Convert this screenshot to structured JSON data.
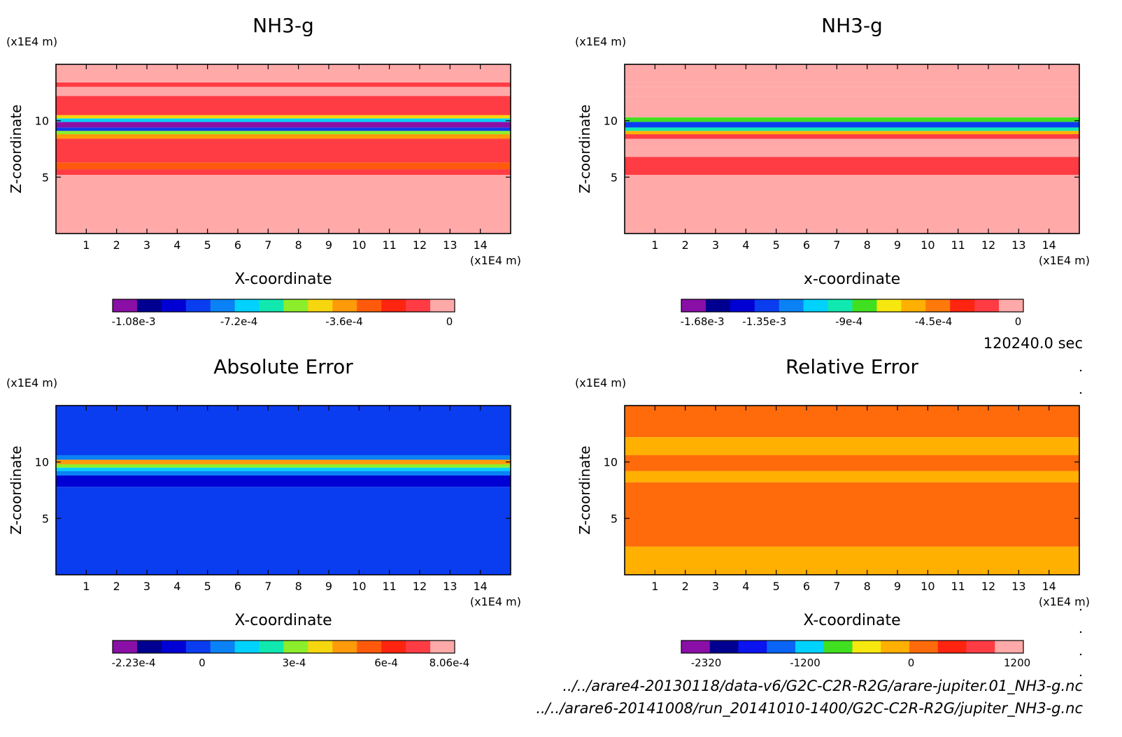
{
  "time_label": "120240.0 sec",
  "files": [
    "../../arare4-20130118/data-v6/G2C-C2R-R2G/arare-jupiter.01_NH3-g.nc",
    "../../arare6-20141008/run_20141010-1400/G2C-C2R-R2G/jupiter_NH3-g.nc"
  ],
  "chart_data": [
    {
      "type": "heatmap",
      "title": "NH3-g",
      "xlabel": "X-coordinate",
      "ylabel": "Z-coordinate",
      "x_unit": "(x1E4 m)",
      "y_unit": "(x1E4 m)",
      "xlim": [
        0,
        15
      ],
      "ylim": [
        0,
        15
      ],
      "xticks": [
        1,
        2,
        3,
        4,
        5,
        6,
        7,
        8,
        9,
        10,
        11,
        12,
        13,
        14
      ],
      "yticks": [
        5,
        10
      ],
      "colorbar": {
        "colors": [
          "#8a0fa6",
          "#000090",
          "#0000d4",
          "#0a3cf0",
          "#0a82f5",
          "#00d2ff",
          "#10e8b0",
          "#8cee2a",
          "#f6d60e",
          "#ff9a0a",
          "#ff5a0c",
          "#ff2410",
          "#ff3c44",
          "#ffa9a9"
        ],
        "labels": [
          "-1.08e-3",
          "-7.2e-4",
          "-3.6e-4",
          "0"
        ]
      },
      "bands": [
        {
          "z0": 0.0,
          "z1": 5.2,
          "value": 0
        },
        {
          "z0": 5.2,
          "z1": 5.7,
          "value": -0.00014
        },
        {
          "z0": 5.7,
          "z1": 6.3,
          "value": -0.00025
        },
        {
          "z0": 6.3,
          "z1": 8.4,
          "value": -0.00012
        },
        {
          "z0": 8.4,
          "z1": 8.8,
          "value": -0.00032
        },
        {
          "z0": 8.8,
          "z1": 9.1,
          "value": -0.00055
        },
        {
          "z0": 9.1,
          "z1": 9.4,
          "value": -0.00085
        },
        {
          "z0": 9.4,
          "z1": 9.9,
          "value": -0.00108
        },
        {
          "z0": 9.9,
          "z1": 10.2,
          "value": -0.00072
        },
        {
          "z0": 10.2,
          "z1": 10.5,
          "value": -0.0004
        },
        {
          "z0": 10.5,
          "z1": 12.2,
          "value": -0.0001
        },
        {
          "z0": 12.2,
          "z1": 13.0,
          "value": -4e-05
        },
        {
          "z0": 13.0,
          "z1": 13.4,
          "value": -0.0001
        },
        {
          "z0": 13.4,
          "z1": 15.0,
          "value": 0
        }
      ]
    },
    {
      "type": "heatmap",
      "title": "NH3-g",
      "xlabel": "x-coordinate",
      "ylabel": "Z-coordinate",
      "x_unit": "(x1E4 m)",
      "y_unit": "(x1E4 m)",
      "xlim": [
        0,
        15
      ],
      "ylim": [
        0,
        15
      ],
      "xticks": [
        1,
        2,
        3,
        4,
        5,
        6,
        7,
        8,
        9,
        10,
        11,
        12,
        13,
        14
      ],
      "yticks": [
        5,
        10
      ],
      "colorbar": {
        "colors": [
          "#8a0fa6",
          "#000090",
          "#0000d4",
          "#0a3cf0",
          "#0a82f5",
          "#00d2ff",
          "#10e8b0",
          "#40e020",
          "#f6e80e",
          "#ffb000",
          "#ff7a0a",
          "#ff2410",
          "#ff3c44",
          "#ffa9a9"
        ],
        "labels": [
          "-1.68e-3",
          "-1.35e-3",
          "-9e-4",
          "-4.5e-4",
          "0"
        ]
      },
      "bands": [
        {
          "z0": 0.0,
          "z1": 5.2,
          "value": 0
        },
        {
          "z0": 5.2,
          "z1": 6.8,
          "value": -0.00015
        },
        {
          "z0": 6.8,
          "z1": 7.6,
          "value": -5e-05
        },
        {
          "z0": 7.6,
          "z1": 8.4,
          "value": -2e-05
        },
        {
          "z0": 8.4,
          "z1": 8.8,
          "value": -0.0002
        },
        {
          "z0": 8.8,
          "z1": 9.1,
          "value": -0.0006
        },
        {
          "z0": 9.1,
          "z1": 9.4,
          "value": -0.001
        },
        {
          "z0": 9.4,
          "z1": 9.9,
          "value": -0.00135
        },
        {
          "z0": 9.9,
          "z1": 10.3,
          "value": -0.0008
        },
        {
          "z0": 10.3,
          "z1": 12.2,
          "value": -0.0001
        },
        {
          "z0": 12.2,
          "z1": 13.0,
          "value": -3e-05
        },
        {
          "z0": 13.0,
          "z1": 13.4,
          "value": -0.0001
        },
        {
          "z0": 13.4,
          "z1": 15.0,
          "value": 0
        }
      ]
    },
    {
      "type": "heatmap",
      "title": "Absolute Error",
      "xlabel": "X-coordinate",
      "ylabel": "Z-coordinate",
      "x_unit": "(x1E4 m)",
      "y_unit": "(x1E4 m)",
      "xlim": [
        0,
        15
      ],
      "ylim": [
        0,
        15
      ],
      "xticks": [
        1,
        2,
        3,
        4,
        5,
        6,
        7,
        8,
        9,
        10,
        11,
        12,
        13,
        14
      ],
      "yticks": [
        5,
        10
      ],
      "colorbar": {
        "colors": [
          "#8a0fa6",
          "#000090",
          "#0000d4",
          "#0a3cf0",
          "#0a82f5",
          "#00d2ff",
          "#10e8b0",
          "#8cee2a",
          "#f6d60e",
          "#ff9a0a",
          "#ff5a0c",
          "#ff2410",
          "#ff3c44",
          "#ffa9a9"
        ],
        "labels": [
          "-2.23e-4",
          "0",
          "3e-4",
          "6e-4",
          "8.06e-4"
        ]
      },
      "bands": [
        {
          "z0": 0.0,
          "z1": 7.8,
          "value": -1e-05
        },
        {
          "z0": 7.8,
          "z1": 8.8,
          "value": -0.00012
        },
        {
          "z0": 8.8,
          "z1": 9.2,
          "value": 5e-05
        },
        {
          "z0": 9.2,
          "z1": 9.5,
          "value": 0.00015
        },
        {
          "z0": 9.5,
          "z1": 9.8,
          "value": 0.0003
        },
        {
          "z0": 9.8,
          "z1": 10.2,
          "value": 0.00045
        },
        {
          "z0": 10.2,
          "z1": 10.6,
          "value": 0.0001
        },
        {
          "z0": 10.6,
          "z1": 15.0,
          "value": 1e-05
        }
      ]
    },
    {
      "type": "heatmap",
      "title": "Relative Error",
      "xlabel": "X-coordinate",
      "ylabel": "Z-coordinate",
      "x_unit": "(x1E4 m)",
      "y_unit": "(x1E4 m)",
      "xlim": [
        0,
        15
      ],
      "ylim": [
        0,
        15
      ],
      "xticks": [
        1,
        2,
        3,
        4,
        5,
        6,
        7,
        8,
        9,
        10,
        11,
        12,
        13,
        14
      ],
      "yticks": [
        5,
        10
      ],
      "colorbar": {
        "colors": [
          "#8a0fa6",
          "#000090",
          "#0a14f0",
          "#0a64f5",
          "#00d2ff",
          "#40e020",
          "#f6e80e",
          "#ffb000",
          "#ff6a0a",
          "#ff2410",
          "#ff3c44",
          "#ffa9a9"
        ],
        "labels": [
          "-2320",
          "-1200",
          "0",
          "1200"
        ]
      },
      "bands": [
        {
          "z0": 0.0,
          "z1": 2.5,
          "value": -100
        },
        {
          "z0": 2.5,
          "z1": 8.2,
          "value": 100
        },
        {
          "z0": 8.2,
          "z1": 9.2,
          "value": -150
        },
        {
          "z0": 9.2,
          "z1": 10.6,
          "value": 100
        },
        {
          "z0": 10.6,
          "z1": 12.2,
          "value": -100
        },
        {
          "z0": 12.2,
          "z1": 15.0,
          "value": 100
        }
      ]
    }
  ]
}
